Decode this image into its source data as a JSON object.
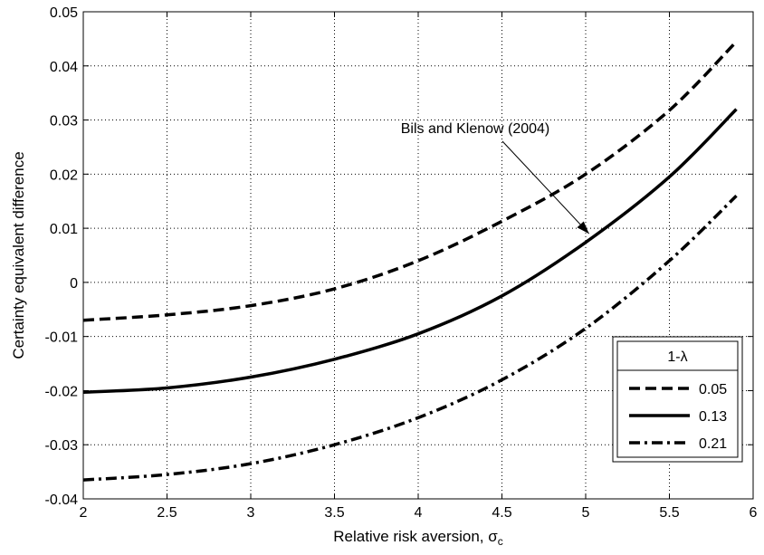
{
  "chart_data": {
    "type": "line",
    "title": "",
    "xlabel": "Relative risk aversion, σ",
    "xlabel_subscript": "c",
    "ylabel": "Certainty equivalent difference",
    "xlim": [
      2,
      6
    ],
    "ylim": [
      -0.04,
      0.05
    ],
    "xticks": [
      "2",
      "2.5",
      "3",
      "3.5",
      "4",
      "4.5",
      "5",
      "5.5",
      "6"
    ],
    "yticks": [
      "-0.04",
      "-0.03",
      "-0.02",
      "-0.01",
      "0",
      "0.01",
      "0.02",
      "0.03",
      "0.04",
      "0.05"
    ],
    "grid": true,
    "legend": {
      "title": "1-λ",
      "position": "lower-right"
    },
    "annotation": {
      "text": "Bils and Klenow (2004)",
      "x": 5.02,
      "y": 0.009
    },
    "x": [
      2,
      2.5,
      3,
      3.5,
      4,
      4.5,
      5,
      5.5,
      5.9
    ],
    "series": [
      {
        "name": "0.05",
        "style": "dashed",
        "values": [
          -0.007,
          -0.006,
          -0.0043,
          -0.0012,
          0.004,
          0.0113,
          0.02,
          0.0318,
          0.0445
        ]
      },
      {
        "name": "0.13",
        "style": "solid",
        "values": [
          -0.0203,
          -0.0195,
          -0.0175,
          -0.0142,
          -0.0095,
          -0.0025,
          0.0074,
          0.0195,
          0.032
        ]
      },
      {
        "name": "0.21",
        "style": "dashdot",
        "values": [
          -0.0365,
          -0.0355,
          -0.0335,
          -0.03,
          -0.025,
          -0.018,
          -0.0085,
          0.004,
          0.016
        ]
      }
    ]
  }
}
